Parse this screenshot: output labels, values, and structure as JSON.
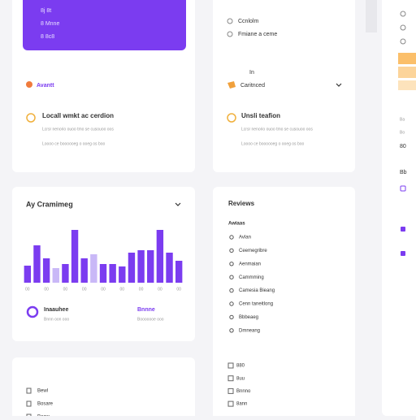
{
  "top_card": {
    "lines": [
      "8j 8t",
      "8 Mnne",
      "8 8c8"
    ]
  },
  "left_card": {
    "tag": "Avantt",
    "heading": "Locall wmkt ac cerdion",
    "lines": [
      "Lcrsr nenorio ouoo tmo se cusouoo oos",
      "Loooo ce boooooeg o ooeg os boo"
    ]
  },
  "middle_card": {
    "items": [
      "Ccnlolm",
      "Fmiane a ceme"
    ],
    "small": "In",
    "select": "Caritnced",
    "heading": "Unsli teafion",
    "lines": [
      "Lcrsr nenorio ouoo tmo se cusouoo oos",
      "Loooo ce boooooeg o ooeg os boo"
    ]
  },
  "right_column": {
    "lines": [
      "Ba",
      "Bo",
      "80",
      "Bb"
    ]
  },
  "chart_data": {
    "type": "bar",
    "title": "Ay Cramimeg",
    "categories": [
      "00",
      null,
      "00",
      null,
      "00",
      null,
      "00",
      null,
      "00",
      null,
      "00",
      null,
      "00",
      null,
      "00",
      null,
      "00"
    ],
    "values": [
      21,
      46,
      30,
      18,
      23,
      65,
      30,
      35,
      23,
      23,
      20,
      37,
      40,
      40,
      65,
      37,
      27
    ],
    "colors": [
      "#7b3cf0",
      "#7b3cf0",
      "#7b3cf0",
      "#c9b8f7",
      "#7b3cf0",
      "#7b3cf0",
      "#7b3cf0",
      "#c9b8f7",
      "#7b3cf0",
      "#7b3cf0",
      "#7b3cf0",
      "#7b3cf0",
      "#7b3cf0",
      "#7b3cf0",
      "#7b3cf0",
      "#7b3cf0",
      "#7b3cf0"
    ],
    "ylim": [
      0,
      70
    ]
  },
  "chart_footer": [
    {
      "name": "Inaauhee",
      "note": "Bnnn oon ooo"
    },
    {
      "name": "Bnnne",
      "note": "Booooooe ooo"
    }
  ],
  "reviews": {
    "title": "Reviews",
    "subtitle": "Awiaas",
    "items": [
      "Avlan",
      "Ceemegribre",
      "Aenmaian",
      "Cammming",
      "Camesia Bieang",
      "Cenn taneitlong",
      "Bbbeaeg",
      "Dmneang"
    ],
    "checks": [
      "880",
      "8uu",
      "Bnnno",
      "8ann"
    ]
  },
  "bottom_left": {
    "items": [
      "Bewl",
      "Bosare",
      "Boow"
    ]
  }
}
